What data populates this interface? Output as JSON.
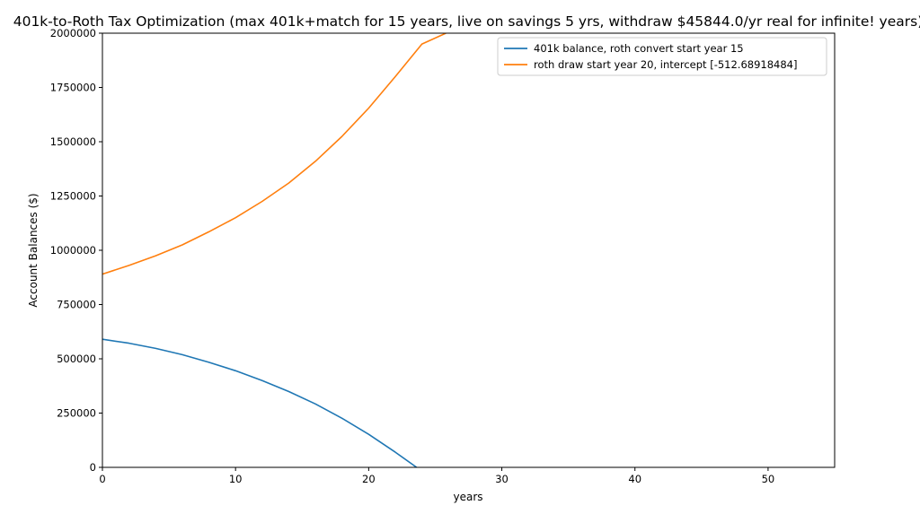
{
  "chart_data": {
    "type": "line",
    "title": "401k-to-Roth Tax Optimization (max 401k+match for 15 years, live on savings 5 yrs, withdraw $45844.0/yr real for infinite! years)",
    "xlabel": "years",
    "ylabel": "Account Balances ($)",
    "xlim": [
      0,
      55
    ],
    "ylim": [
      0,
      2000000
    ],
    "xticks": [
      0,
      10,
      20,
      30,
      40,
      50
    ],
    "yticks": [
      0,
      250000,
      500000,
      750000,
      1000000,
      1250000,
      1500000,
      1750000,
      2000000
    ],
    "grid": false,
    "legend_position": "upper right",
    "series": [
      {
        "name": "401k balance, roth convert start year 15",
        "color": "#1f77b4",
        "x": [
          0,
          2,
          4,
          6,
          8,
          10,
          12,
          14,
          16,
          18,
          20,
          22,
          23.6
        ],
        "y": [
          590000,
          572000,
          548000,
          519000,
          484000,
          445000,
          400000,
          349000,
          292000,
          226000,
          152000,
          70000,
          0
        ]
      },
      {
        "name": "roth draw start year 20, intercept [-512.68918484]",
        "color": "#ff7f0e",
        "x": [
          0,
          2,
          4,
          6,
          8,
          10,
          12,
          14,
          16,
          18,
          20,
          22,
          24,
          25.8
        ],
        "y": [
          890000,
          930000,
          975000,
          1025000,
          1085000,
          1150000,
          1225000,
          1310000,
          1410000,
          1525000,
          1655000,
          1800000,
          1950000,
          2000000
        ]
      }
    ]
  }
}
